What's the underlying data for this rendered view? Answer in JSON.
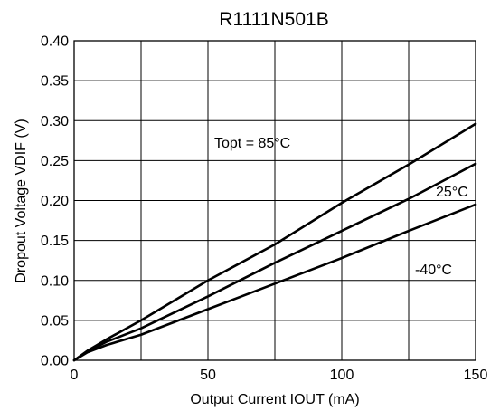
{
  "chart_data": {
    "type": "line",
    "title": "R1111N501B",
    "xlabel": "Output Current IOUT (mA)",
    "ylabel": "Dropout Voltage VDIF (V)",
    "xlim": [
      0,
      150
    ],
    "ylim": [
      0,
      0.4
    ],
    "x_ticks": [
      "0",
      "50",
      "100",
      "150"
    ],
    "y_ticks": [
      "0.00",
      "0.05",
      "0.10",
      "0.15",
      "0.20",
      "0.25",
      "0.30",
      "0.35",
      "0.40"
    ],
    "grid": true,
    "series": [
      {
        "name": "Topt = 85°C",
        "x": [
          0,
          5,
          12,
          25,
          50,
          75,
          100,
          125,
          150
        ],
        "y": [
          0,
          0.012,
          0.026,
          0.05,
          0.1,
          0.145,
          0.197,
          0.245,
          0.296
        ]
      },
      {
        "name": "25°C",
        "x": [
          0,
          5,
          12,
          25,
          50,
          75,
          100,
          125,
          150
        ],
        "y": [
          0,
          0.011,
          0.023,
          0.04,
          0.08,
          0.122,
          0.162,
          0.202,
          0.246
        ]
      },
      {
        "name": "-40°C",
        "x": [
          0,
          5,
          12,
          25,
          50,
          75,
          100,
          125,
          150
        ],
        "y": [
          0,
          0.01,
          0.019,
          0.032,
          0.064,
          0.096,
          0.128,
          0.162,
          0.195
        ]
      }
    ],
    "annotations": [
      "Topt = 85°C",
      "25°C",
      "-40°C"
    ]
  }
}
